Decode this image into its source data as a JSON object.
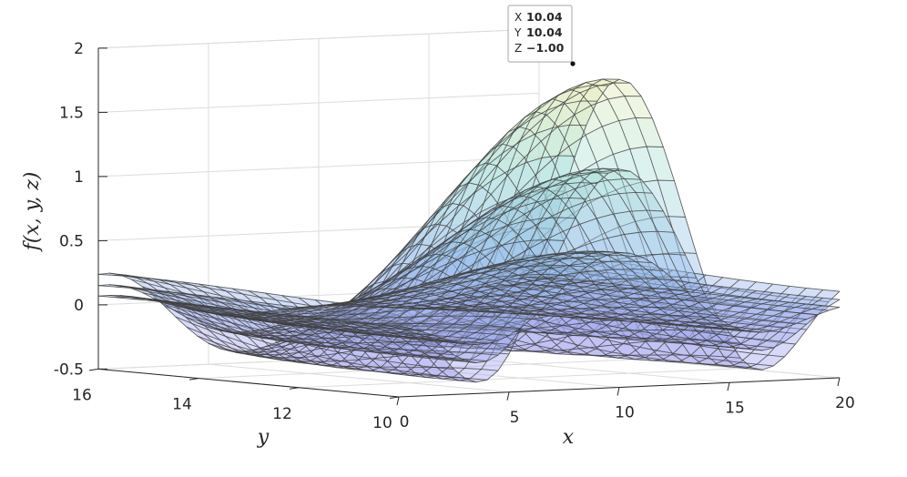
{
  "chart_data": {
    "type": "surface",
    "function": "f(x,y,z)",
    "xlabel": "x",
    "ylabel": "y",
    "zlabel": "f(x, y, z)",
    "xlim": [
      0,
      20
    ],
    "ylim": [
      10,
      16
    ],
    "zlim": [
      -0.5,
      2
    ],
    "xticks": [
      "0",
      "5",
      "10",
      "15",
      "20"
    ],
    "yticks": [
      "10",
      "12",
      "14",
      "16"
    ],
    "zticks": [
      "-0.5",
      "0",
      "0.5",
      "1",
      "1.5",
      "2"
    ],
    "grid": true,
    "colormap": "parula (pastel)",
    "datatip": {
      "x_key": "X",
      "x_value": "10.04",
      "y_key": "Y",
      "y_value": "10.04",
      "z_key": "Z",
      "z_value": "−1.00",
      "value_color": "#0099e6"
    },
    "surfaces": [
      {
        "peak_amplitude": 1.9
      },
      {
        "peak_amplitude": 1.2
      },
      {
        "peak_amplitude": 0.55
      }
    ]
  }
}
